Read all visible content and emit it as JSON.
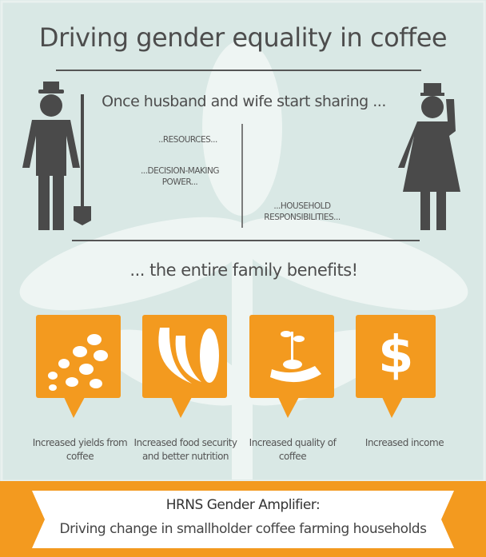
{
  "header": {
    "title": "Driving gender equality in coffee"
  },
  "sharing": {
    "lead": "Once husband and wife start sharing ...",
    "items": [
      "..RESOURCES...",
      "...DECISION-MAKING POWER...",
      "...HOUSEHOLD RESPONSIBILITIES..."
    ]
  },
  "conclusion": "... the entire family benefits!",
  "benefits": [
    {
      "label": "Increased yields from coffee"
    },
    {
      "label": "Increased food security and better nutrition"
    },
    {
      "label": "Increased quality of coffee"
    },
    {
      "label": "Increased income",
      "symbol": "$"
    }
  ],
  "banner": {
    "title": "HRNS Gender Amplifier:",
    "subtitle": "Driving change in smallholder coffee farming households"
  }
}
